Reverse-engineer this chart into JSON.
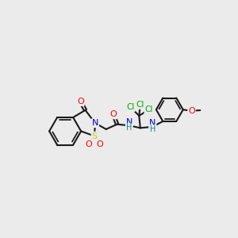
{
  "background_color": "#ebebeb",
  "bond_color": "#1a1a1a",
  "atom_colors": {
    "O": "#ff0000",
    "N": "#0000cc",
    "S": "#cccc00",
    "Cl": "#00aa00",
    "H": "#009090",
    "C": "#1a1a1a"
  },
  "figsize": [
    3.0,
    3.0
  ],
  "dpi": 100
}
